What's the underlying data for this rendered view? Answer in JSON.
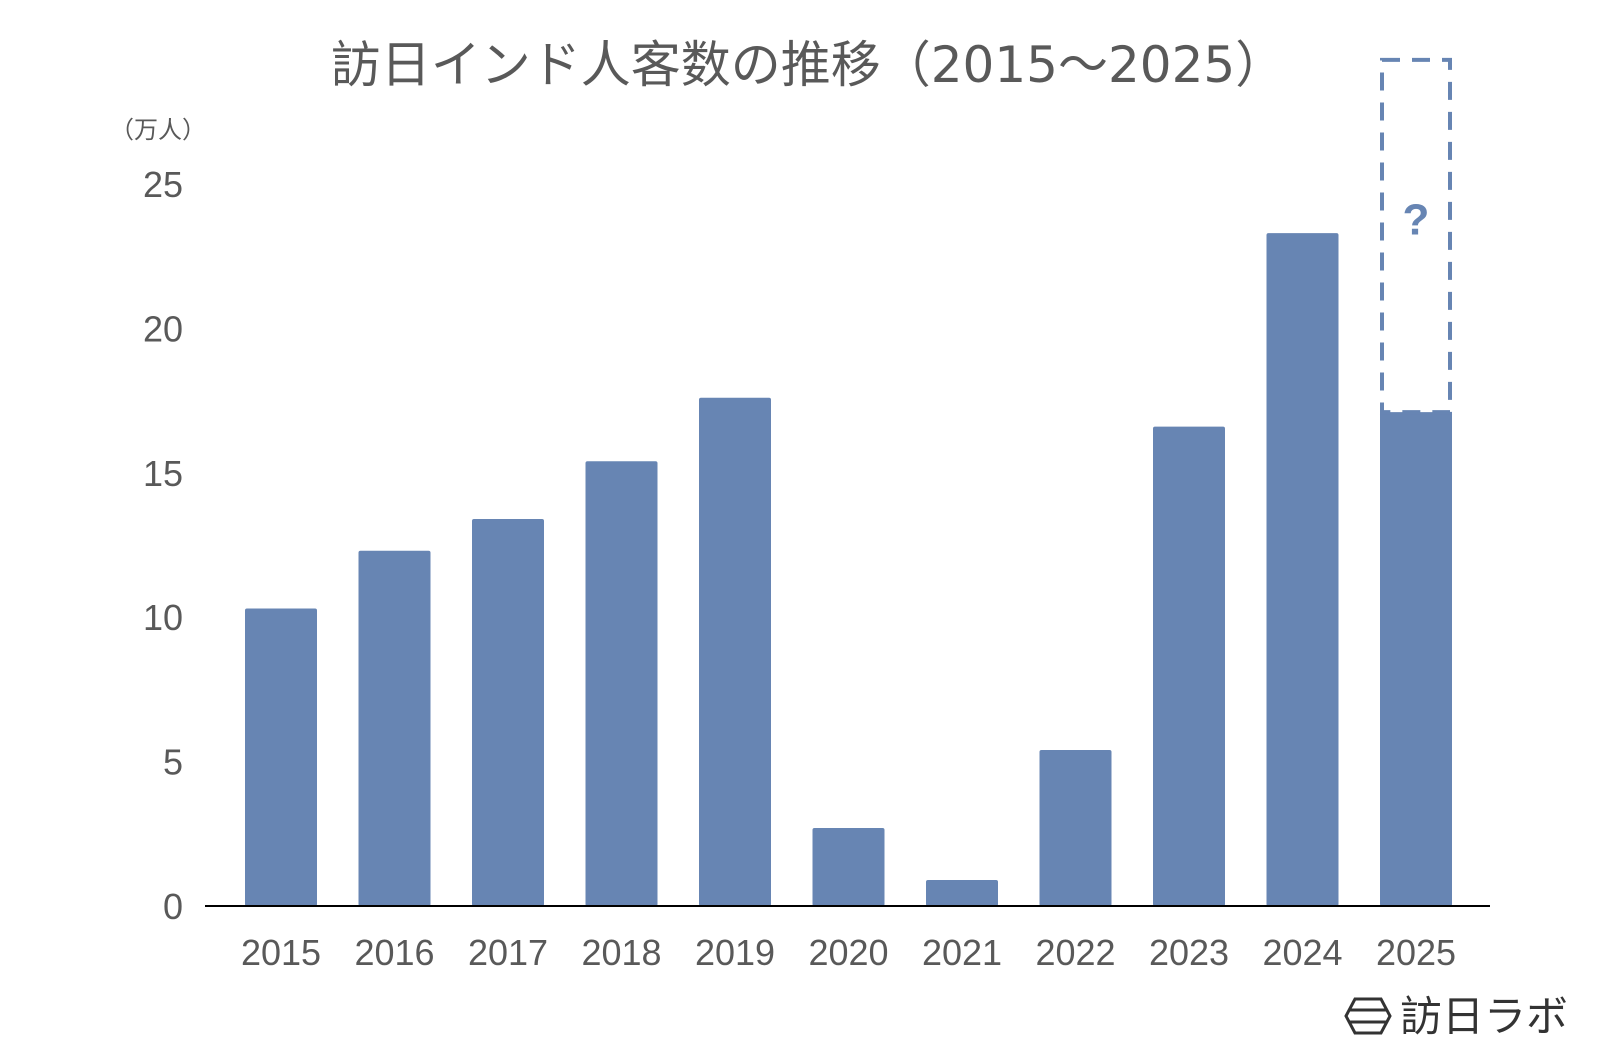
{
  "chart_data": {
    "type": "bar",
    "title": "訪日インド人客数の推移（2015〜2025）",
    "unit_label": "（万人）",
    "categories": [
      "2015",
      "2016",
      "2017",
      "2018",
      "2019",
      "2020",
      "2021",
      "2022",
      "2023",
      "2024",
      "2025"
    ],
    "values": [
      10.3,
      12.3,
      13.4,
      15.4,
      17.6,
      2.7,
      0.9,
      5.4,
      16.6,
      23.3,
      17.1
    ],
    "projected_top": 29.3,
    "projected_label": "?",
    "ylim": [
      0,
      25
    ],
    "yticks": [
      "0",
      "5",
      "10",
      "15",
      "20",
      "25"
    ],
    "grid": false,
    "legend": "none",
    "colors": {
      "bar": "#6785b3",
      "axis": "#000000",
      "text": "#595959",
      "projection": "#6785b3"
    }
  },
  "brand": {
    "name": "訪日ラボ",
    "icon": "hexagon-logo-icon"
  }
}
